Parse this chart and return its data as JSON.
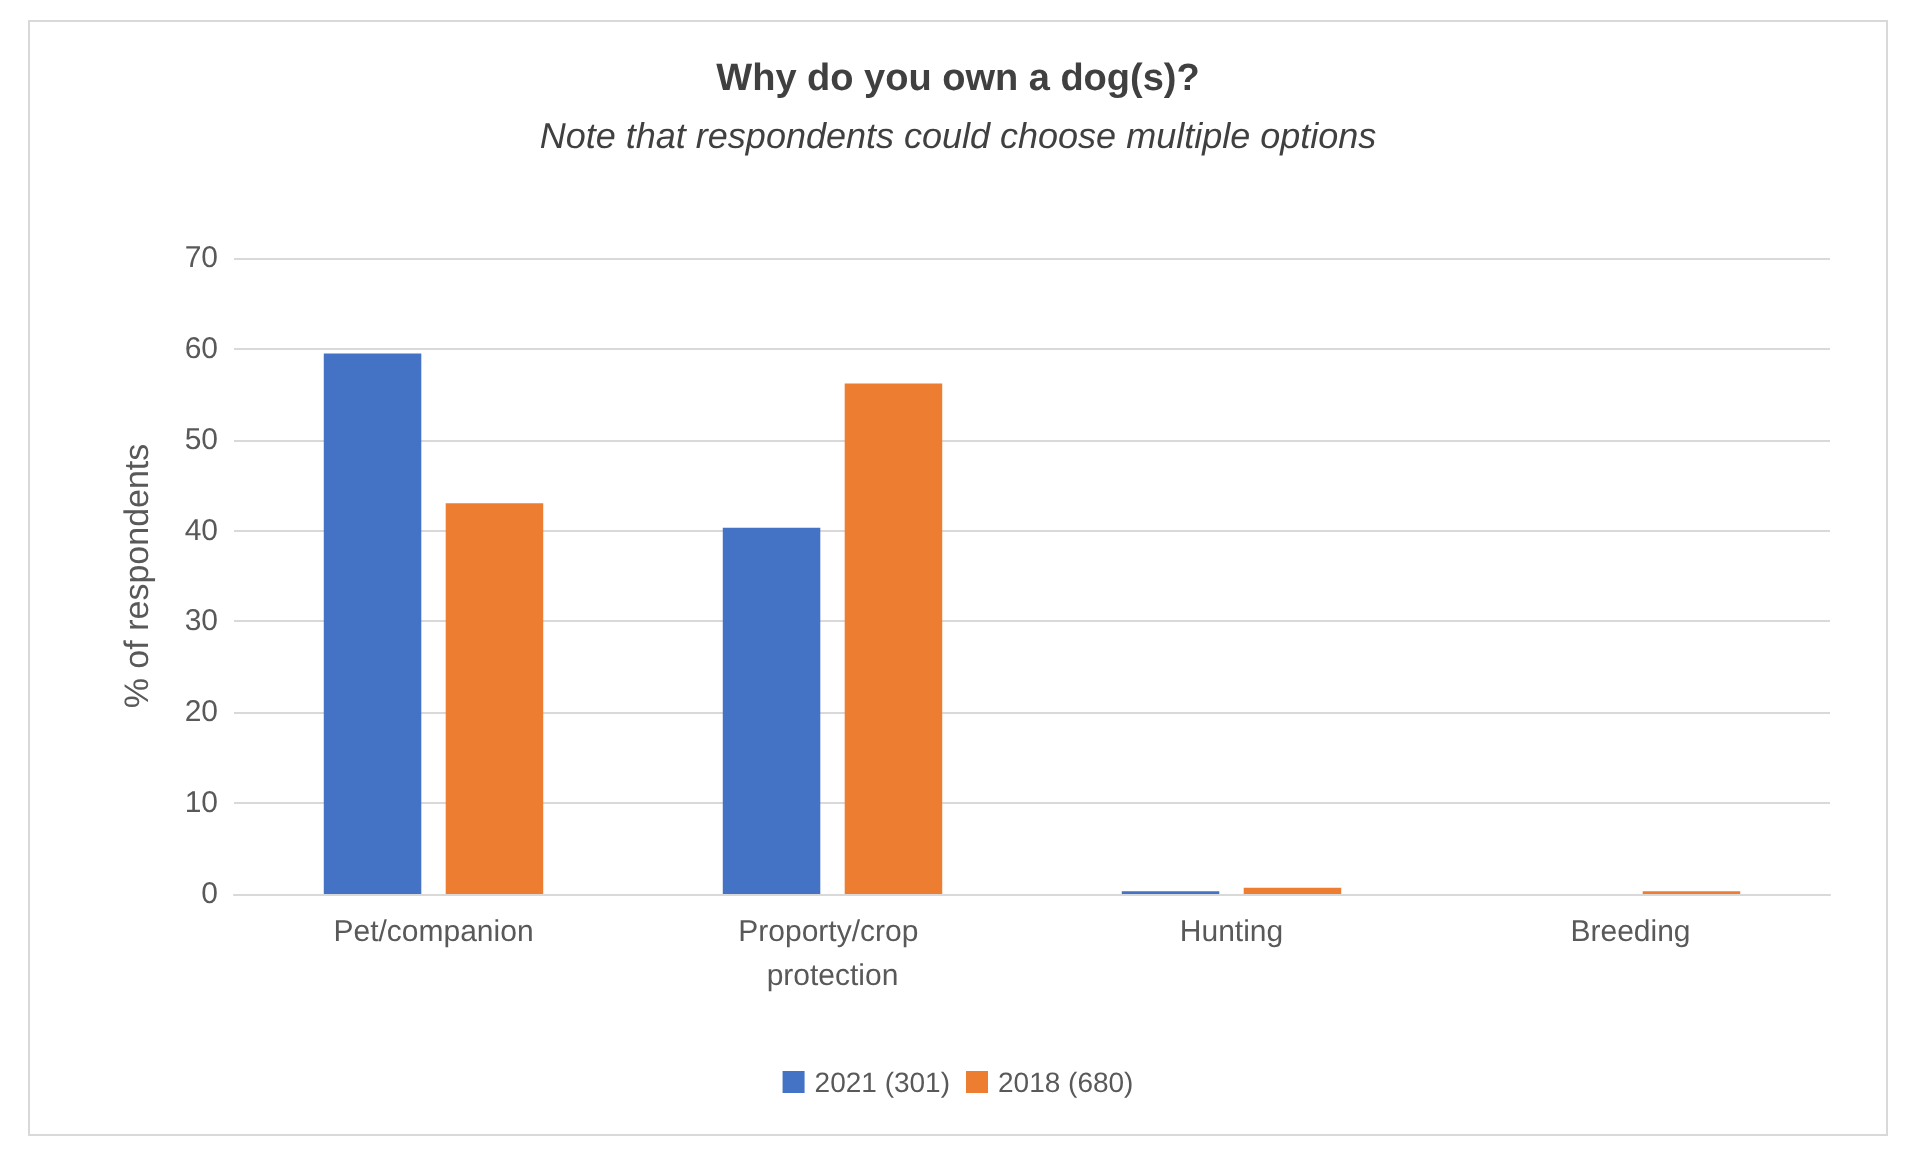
{
  "chart_data": {
    "type": "bar",
    "title": "Why do you own a dog(s)?",
    "subtitle": "Note that respondents could choose multiple options",
    "ylabel": "% of respondents",
    "categories": [
      "Pet/companion",
      "Proporty/crop protection",
      "Hunting",
      "Breeding"
    ],
    "series": [
      {
        "name": "2021 (301)",
        "color": "#4472c4",
        "values": [
          59.5,
          40.3,
          0.3,
          0
        ]
      },
      {
        "name": "2018 (680)",
        "color": "#ed7d31",
        "values": [
          43,
          56.2,
          0.7,
          0.3
        ]
      }
    ],
    "ylim": [
      0,
      70
    ],
    "yticks": [
      0,
      10,
      20,
      30,
      40,
      50,
      60,
      70
    ],
    "grid": "y",
    "legend": "bottom"
  }
}
